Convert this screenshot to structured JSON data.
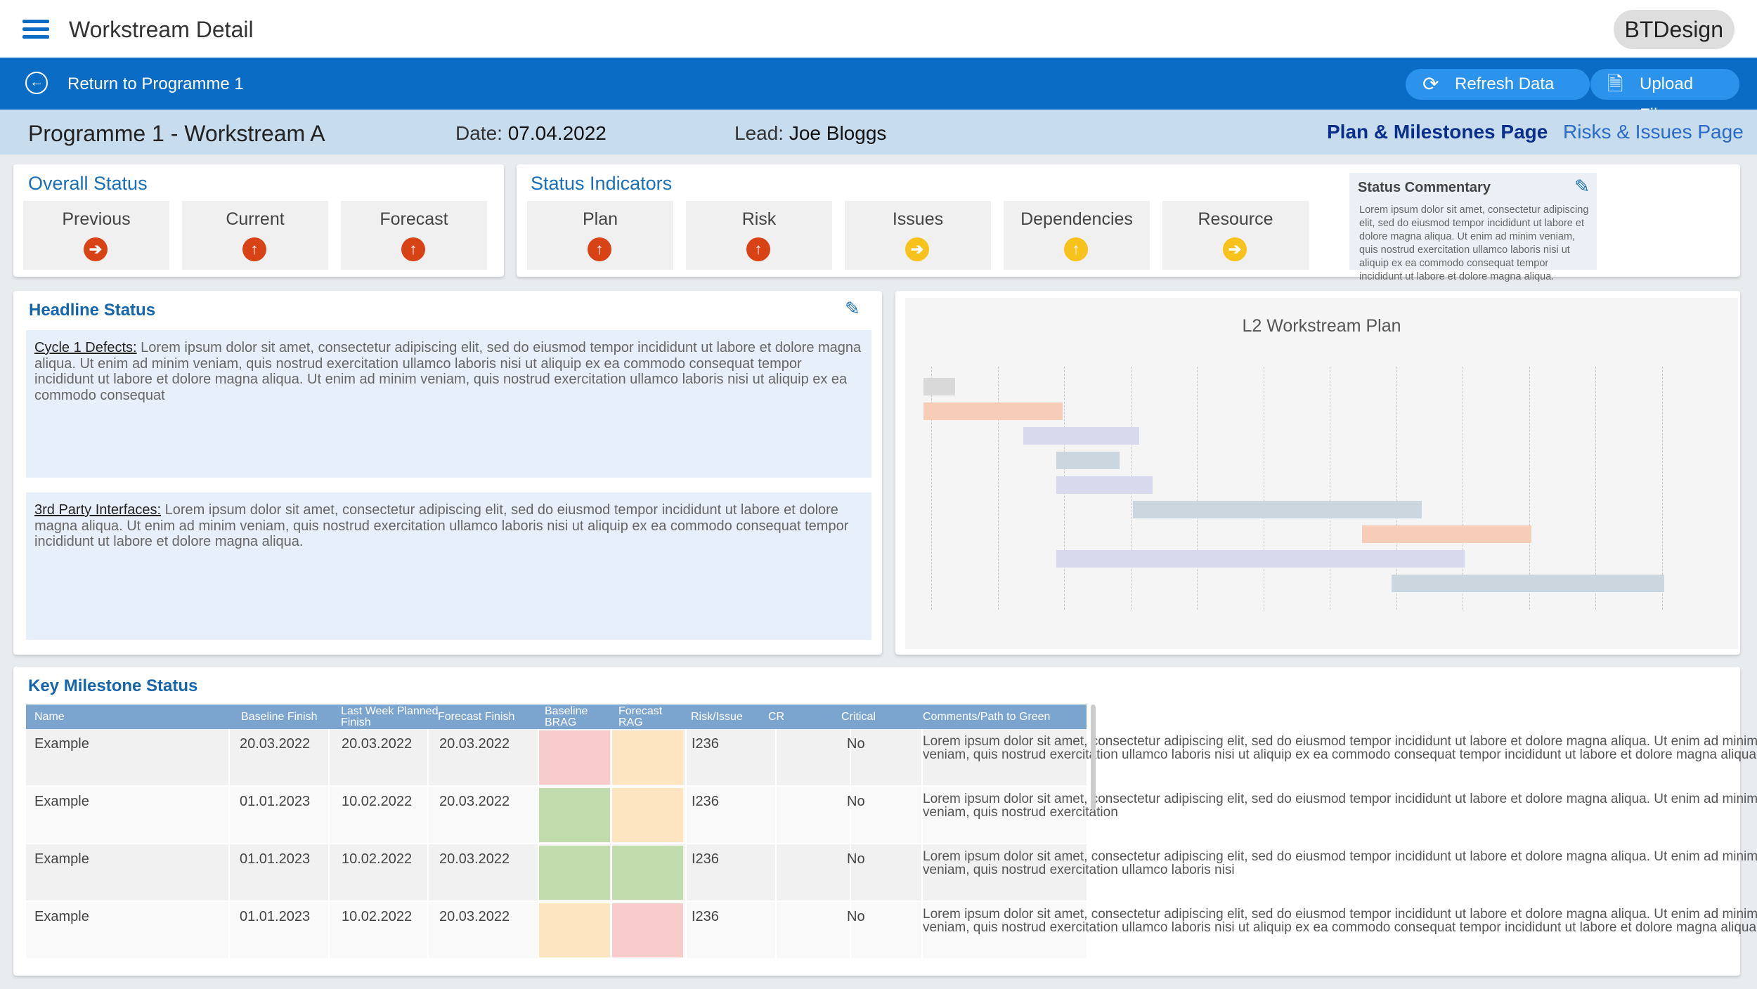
{
  "app": {
    "title": "Workstream Detail",
    "brand": "BTDesign"
  },
  "nav": {
    "back_label": "Return to Programme 1",
    "refresh_label": "Refresh Data",
    "upload_label": "Upload File"
  },
  "info": {
    "title": "Programme 1 - Workstream A",
    "date_label": "Date:",
    "date_value": "07.04.2022",
    "lead_label": "Lead:",
    "lead_value": "Joe Bloggs",
    "plan_link": "Plan & Milestones Page",
    "risks_link": "Risks & Issues Page"
  },
  "overall_status": {
    "title": "Overall Status",
    "items": [
      {
        "label": "Previous",
        "status": "red",
        "arrow": "➔"
      },
      {
        "label": "Current",
        "status": "red",
        "arrow": "↑"
      },
      {
        "label": "Forecast",
        "status": "red",
        "arrow": "↑"
      }
    ]
  },
  "status_indicators": {
    "title": "Status Indicators",
    "items": [
      {
        "label": "Plan",
        "status": "red",
        "arrow": "↑"
      },
      {
        "label": "Risk",
        "status": "red",
        "arrow": "↑"
      },
      {
        "label": "Issues",
        "status": "amber",
        "arrow": "➔"
      },
      {
        "label": "Dependencies",
        "status": "amber",
        "arrow": "↑"
      },
      {
        "label": "Resource",
        "status": "amber",
        "arrow": "➔"
      }
    ],
    "commentary_title": "Status Commentary",
    "commentary_text": "Lorem ipsum dolor sit amet, consectetur adipiscing elit, sed do eiusmod tempor incididunt ut labore et dolore magna aliqua. Ut enim ad minim veniam, quis nostrud exercitation ullamco laboris nisi ut aliquip ex ea commodo consequat tempor incididunt ut labore et dolore magna aliqua."
  },
  "headline_status": {
    "title": "Headline Status",
    "blocks": [
      {
        "heading": "Cycle 1 Defects:",
        "text": " Lorem ipsum dolor sit amet, consectetur adipiscing elit, sed do eiusmod tempor incididunt ut labore et dolore magna aliqua. Ut enim ad minim veniam, quis nostrud exercitation ullamco laboris nisi ut aliquip ex ea commodo consequat tempor incididunt ut labore et dolore magna aliqua. Ut enim ad minim veniam, quis nostrud exercitation ullamco laboris nisi ut aliquip ex ea commodo consequat"
      },
      {
        "heading": "3rd Party Interfaces:",
        "text": " Lorem ipsum dolor sit amet, consectetur adipiscing elit, sed do eiusmod tempor incididunt ut labore et dolore magna aliqua. Ut enim ad minim veniam, quis nostrud exercitation ullamco laboris nisi ut aliquip ex ea commodo consequat tempor incididunt ut labore et dolore magna aliqua."
      }
    ]
  },
  "gantt": {
    "title": "L2 Workstream Plan",
    "periods": 12,
    "bars": [
      {
        "start": 0.0,
        "end": 0.48,
        "color": "#d9d9d9"
      },
      {
        "start": 0.0,
        "end": 2.1,
        "color": "#f6cdb7"
      },
      {
        "start": 1.5,
        "end": 3.25,
        "color": "#d9d9ee"
      },
      {
        "start": 2.0,
        "end": 2.95,
        "color": "#cbd6df"
      },
      {
        "start": 2.0,
        "end": 3.45,
        "color": "#d9d9ee"
      },
      {
        "start": 3.15,
        "end": 7.5,
        "color": "#cbd6df"
      },
      {
        "start": 6.6,
        "end": 9.15,
        "color": "#f6cdb7"
      },
      {
        "start": 2.0,
        "end": 8.15,
        "color": "#d9d9ee"
      },
      {
        "start": 7.05,
        "end": 11.15,
        "color": "#cbd6df"
      }
    ]
  },
  "milestones": {
    "title": "Key Milestone Status",
    "columns": [
      "Name",
      "Baseline Finish",
      "Last Week Planned Finish",
      "Forecast Finish",
      "Baseline BRAG",
      "Forecast RAG",
      "Risk/Issue",
      "CR",
      "Critical",
      "Comments/Path to Green"
    ],
    "rows": [
      {
        "name": "Example",
        "baseline": "20.03.2022",
        "lastweek": "20.03.2022",
        "forecast": "20.03.2022",
        "brag": "#f9cccc",
        "rag": "#fde5c2",
        "risk": "I236",
        "cr": "",
        "critical": "No",
        "comment": "Lorem ipsum dolor sit amet, consectetur adipiscing elit, sed do eiusmod tempor incididunt ut labore et dolore magna aliqua. Ut enim ad minim veniam, quis nostrud exercitation ullamco laboris nisi ut aliquip ex ea commodo consequat tempor incididunt ut labore et dolore magna aliqua."
      },
      {
        "name": "Example",
        "baseline": "01.01.2023",
        "lastweek": "10.02.2022",
        "forecast": "20.03.2022",
        "brag": "#c3dcae",
        "rag": "#fde5c2",
        "risk": "I236",
        "cr": "",
        "critical": "No",
        "comment": "Lorem ipsum dolor sit amet, consectetur adipiscing elit, sed do eiusmod tempor incididunt ut labore et dolore magna aliqua. Ut enim ad minim veniam, quis nostrud exercitation"
      },
      {
        "name": "Example",
        "baseline": "01.01.2023",
        "lastweek": "10.02.2022",
        "forecast": "20.03.2022",
        "brag": "#c3dcae",
        "rag": "#c3dcae",
        "risk": "I236",
        "cr": "",
        "critical": "No",
        "comment": "Lorem ipsum dolor sit amet, consectetur adipiscing elit, sed do eiusmod tempor incididunt ut labore et dolore magna aliqua. Ut enim ad minim veniam, quis nostrud exercitation ullamco laboris nisi"
      },
      {
        "name": "Example",
        "baseline": "01.01.2023",
        "lastweek": "10.02.2022",
        "forecast": "20.03.2022",
        "brag": "#fde5c2",
        "rag": "#f9cccc",
        "risk": "I236",
        "cr": "",
        "critical": "No",
        "comment": "Lorem ipsum dolor sit amet, consectetur adipiscing elit, sed do eiusmod tempor incididunt ut labore et dolore magna aliqua. Ut enim ad minim veniam, quis nostrud exercitation ullamco laboris nisi ut aliquip ex ea commodo consequat tempor incididunt ut labore et dolore magna aliqua."
      }
    ]
  }
}
